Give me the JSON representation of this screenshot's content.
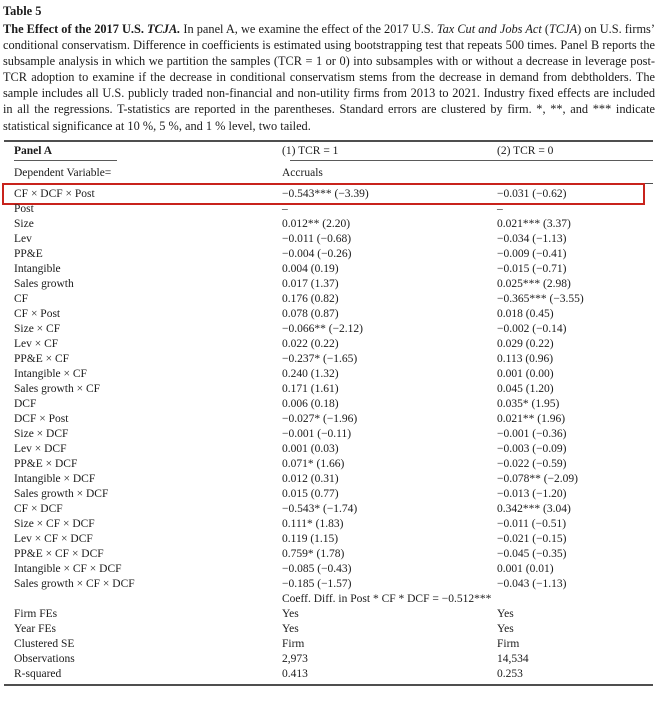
{
  "page": {
    "table_label": "Table 5",
    "caption": {
      "bold_lead": "The Effect of the 2017 U.S. ",
      "bold_italic_lead": "TCJA.",
      "body_1": " In panel A, we examine the effect of the 2017 U.S. ",
      "italic_act": "Tax Cut and Jobs Act",
      "body_2": " (",
      "italic_abbr": "TCJA",
      "body_3": ") on U.S. firms’ conditional conservatism. Difference in coefficients is estimated using bootstrapping test that repeats 500 times. Panel B reports the subsample analysis in which we partition the samples (TCR = 1 or 0) into subsamples with or without a decrease in leverage post-TCR adoption to examine if the decrease in conditional conservatism stems from the decrease in demand from debtholders. The sample includes all U.S. publicly traded non-financial and non-utility firms from 2013 to 2021. Industry fixed effects are included in all the regressions. T-statistics are reported in the parentheses. Standard errors are clustered by firm. *, **, and *** indicate statistical significance at 10 %, 5 %, and 1 % level, two tailed."
    }
  },
  "colors": {
    "highlight_box": "#c8231c",
    "rule": "#4f4f4f"
  },
  "table": {
    "header": {
      "panel_label": "Panel A",
      "col1": "(1) TCR = 1",
      "col2": "(2) TCR = 0",
      "dependent_label": "Dependent Variable=",
      "dependent_value": "Accruals"
    },
    "rows": [
      {
        "label": "CF × DCF × Post",
        "c1": "−0.543*** (−3.39)",
        "c2": "−0.031 (−0.62)",
        "highlight": true
      },
      {
        "label": "Post",
        "c1": "–",
        "c2": "–"
      },
      {
        "label": "Size",
        "c1": "0.012** (2.20)",
        "c2": "0.021*** (3.37)"
      },
      {
        "label": "Lev",
        "c1": "−0.011 (−0.68)",
        "c2": "−0.034 (−1.13)"
      },
      {
        "label": "PP&E",
        "c1": "−0.004 (−0.26)",
        "c2": "−0.009 (−0.41)"
      },
      {
        "label": "Intangible",
        "c1": "0.004 (0.19)",
        "c2": "−0.015 (−0.71)"
      },
      {
        "label": "Sales growth",
        "c1": "0.017 (1.37)",
        "c2": "0.025*** (2.98)"
      },
      {
        "label": "CF",
        "c1": "0.176 (0.82)",
        "c2": "−0.365*** (−3.55)"
      },
      {
        "label": "CF × Post",
        "c1": "0.078 (0.87)",
        "c2": "0.018 (0.45)"
      },
      {
        "label": "Size × CF",
        "c1": "−0.066** (−2.12)",
        "c2": "−0.002 (−0.14)"
      },
      {
        "label": "Lev × CF",
        "c1": "0.022 (0.22)",
        "c2": "0.029 (0.22)"
      },
      {
        "label": "PP&E × CF",
        "c1": "−0.237* (−1.65)",
        "c2": "0.113 (0.96)"
      },
      {
        "label": "Intangible × CF",
        "c1": "0.240 (1.32)",
        "c2": "0.001 (0.00)"
      },
      {
        "label": "Sales growth × CF",
        "c1": "0.171 (1.61)",
        "c2": "0.045 (1.20)"
      },
      {
        "label": "DCF",
        "c1": "0.006 (0.18)",
        "c2": "0.035* (1.95)"
      },
      {
        "label": "DCF × Post",
        "c1": "−0.027* (−1.96)",
        "c2": "0.021** (1.96)"
      },
      {
        "label": "Size × DCF",
        "c1": "−0.001 (−0.11)",
        "c2": "−0.001 (−0.36)"
      },
      {
        "label": "Lev × DCF",
        "c1": "0.001 (0.03)",
        "c2": "−0.003 (−0.09)"
      },
      {
        "label": "PP&E × DCF",
        "c1": "0.071* (1.66)",
        "c2": "−0.022 (−0.59)"
      },
      {
        "label": "Intangible × DCF",
        "c1": "0.012 (0.31)",
        "c2": "−0.078** (−2.09)"
      },
      {
        "label": "Sales growth × DCF",
        "c1": "0.015 (0.77)",
        "c2": "−0.013 (−1.20)"
      },
      {
        "label": "CF × DCF",
        "c1": "−0.543* (−1.74)",
        "c2": "0.342*** (3.04)"
      },
      {
        "label": "Size × CF × DCF",
        "c1": "0.111* (1.83)",
        "c2": "−0.011 (−0.51)"
      },
      {
        "label": "Lev × CF × DCF",
        "c1": "0.119 (1.15)",
        "c2": "−0.021 (−0.15)"
      },
      {
        "label": "PP&E × CF × DCF",
        "c1": "0.759* (1.78)",
        "c2": "−0.045 (−0.35)"
      },
      {
        "label": "Intangible × CF × DCF",
        "c1": "−0.085 (−0.43)",
        "c2": "0.001 (0.01)"
      },
      {
        "label": "Sales growth × CF × DCF",
        "c1": "−0.185 (−1.57)",
        "c2": "−0.043 (−1.13)"
      },
      {
        "label": "",
        "c1": "Coeff. Diff. in Post * CF * DCF = −0.512***",
        "c2": ""
      },
      {
        "label": "Firm FEs",
        "c1": "Yes",
        "c2": "Yes"
      },
      {
        "label": "Year FEs",
        "c1": "Yes",
        "c2": "Yes"
      },
      {
        "label": "Clustered SE",
        "c1": "Firm",
        "c2": "Firm"
      },
      {
        "label": "Observations",
        "c1": "2,973",
        "c2": "14,534"
      },
      {
        "label": "R-squared",
        "c1": "0.413",
        "c2": "0.253"
      }
    ]
  }
}
